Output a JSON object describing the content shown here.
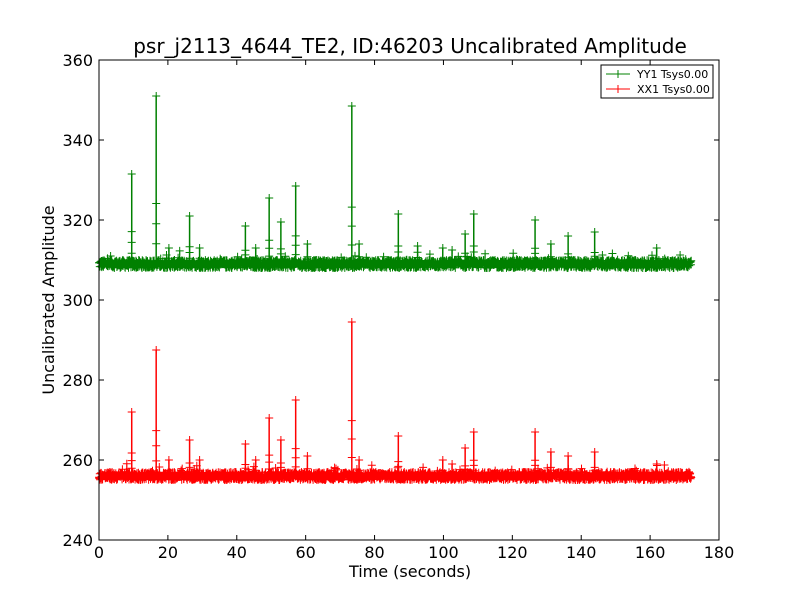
{
  "chart_data": {
    "type": "line",
    "title": "psr_j2113_4644_TE2, ID:46203 Uncalibrated Amplitude",
    "xlabel": "Time (seconds)",
    "ylabel": "Uncalibrated Amplitude",
    "xlim": [
      0,
      180
    ],
    "ylim": [
      240,
      360
    ],
    "xticks": [
      0,
      20,
      40,
      60,
      80,
      100,
      120,
      140,
      160,
      180
    ],
    "yticks": [
      240,
      260,
      280,
      300,
      320,
      340,
      360
    ],
    "grid": false,
    "legend_position": "top-right",
    "marker": "plus",
    "x_range": [
      0,
      172
    ],
    "series": [
      {
        "name": "YY1 Tsys0.00",
        "color": "#008000",
        "baseline": 309,
        "noise": 1.0,
        "spikes": [
          {
            "x": 9.5,
            "y": 331.5
          },
          {
            "x": 16.6,
            "y": 351
          },
          {
            "x": 20.3,
            "y": 313
          },
          {
            "x": 26.3,
            "y": 321
          },
          {
            "x": 29.2,
            "y": 313
          },
          {
            "x": 42.5,
            "y": 318.5
          },
          {
            "x": 45.5,
            "y": 313
          },
          {
            "x": 49.4,
            "y": 325.5
          },
          {
            "x": 52.8,
            "y": 319.5
          },
          {
            "x": 57.1,
            "y": 328.5
          },
          {
            "x": 60.5,
            "y": 314
          },
          {
            "x": 73.4,
            "y": 348.5
          },
          {
            "x": 75.5,
            "y": 314
          },
          {
            "x": 86.9,
            "y": 321.5
          },
          {
            "x": 92.5,
            "y": 313.5
          },
          {
            "x": 99.8,
            "y": 313
          },
          {
            "x": 102.5,
            "y": 312.5
          },
          {
            "x": 106.3,
            "y": 316.5
          },
          {
            "x": 108.8,
            "y": 321.5
          },
          {
            "x": 126.6,
            "y": 320
          },
          {
            "x": 131.2,
            "y": 314
          },
          {
            "x": 136.2,
            "y": 316
          },
          {
            "x": 143.9,
            "y": 317
          },
          {
            "x": 161.9,
            "y": 313
          }
        ]
      },
      {
        "name": "XX1 Tsys0.00",
        "color": "#ff0000",
        "baseline": 256,
        "noise": 1.0,
        "spikes": [
          {
            "x": 9.5,
            "y": 272
          },
          {
            "x": 16.6,
            "y": 287.5
          },
          {
            "x": 20.3,
            "y": 260
          },
          {
            "x": 26.3,
            "y": 265
          },
          {
            "x": 29.2,
            "y": 260
          },
          {
            "x": 42.5,
            "y": 264
          },
          {
            "x": 45.5,
            "y": 260
          },
          {
            "x": 49.4,
            "y": 270.5
          },
          {
            "x": 52.8,
            "y": 265
          },
          {
            "x": 57.1,
            "y": 275
          },
          {
            "x": 60.5,
            "y": 261
          },
          {
            "x": 73.4,
            "y": 294.5
          },
          {
            "x": 75.5,
            "y": 260
          },
          {
            "x": 86.9,
            "y": 266
          },
          {
            "x": 99.8,
            "y": 260
          },
          {
            "x": 102.5,
            "y": 259
          },
          {
            "x": 106.3,
            "y": 263
          },
          {
            "x": 108.8,
            "y": 267
          },
          {
            "x": 126.6,
            "y": 267
          },
          {
            "x": 131.2,
            "y": 262
          },
          {
            "x": 136.2,
            "y": 261
          },
          {
            "x": 143.9,
            "y": 262
          },
          {
            "x": 161.9,
            "y": 259
          }
        ]
      }
    ]
  }
}
